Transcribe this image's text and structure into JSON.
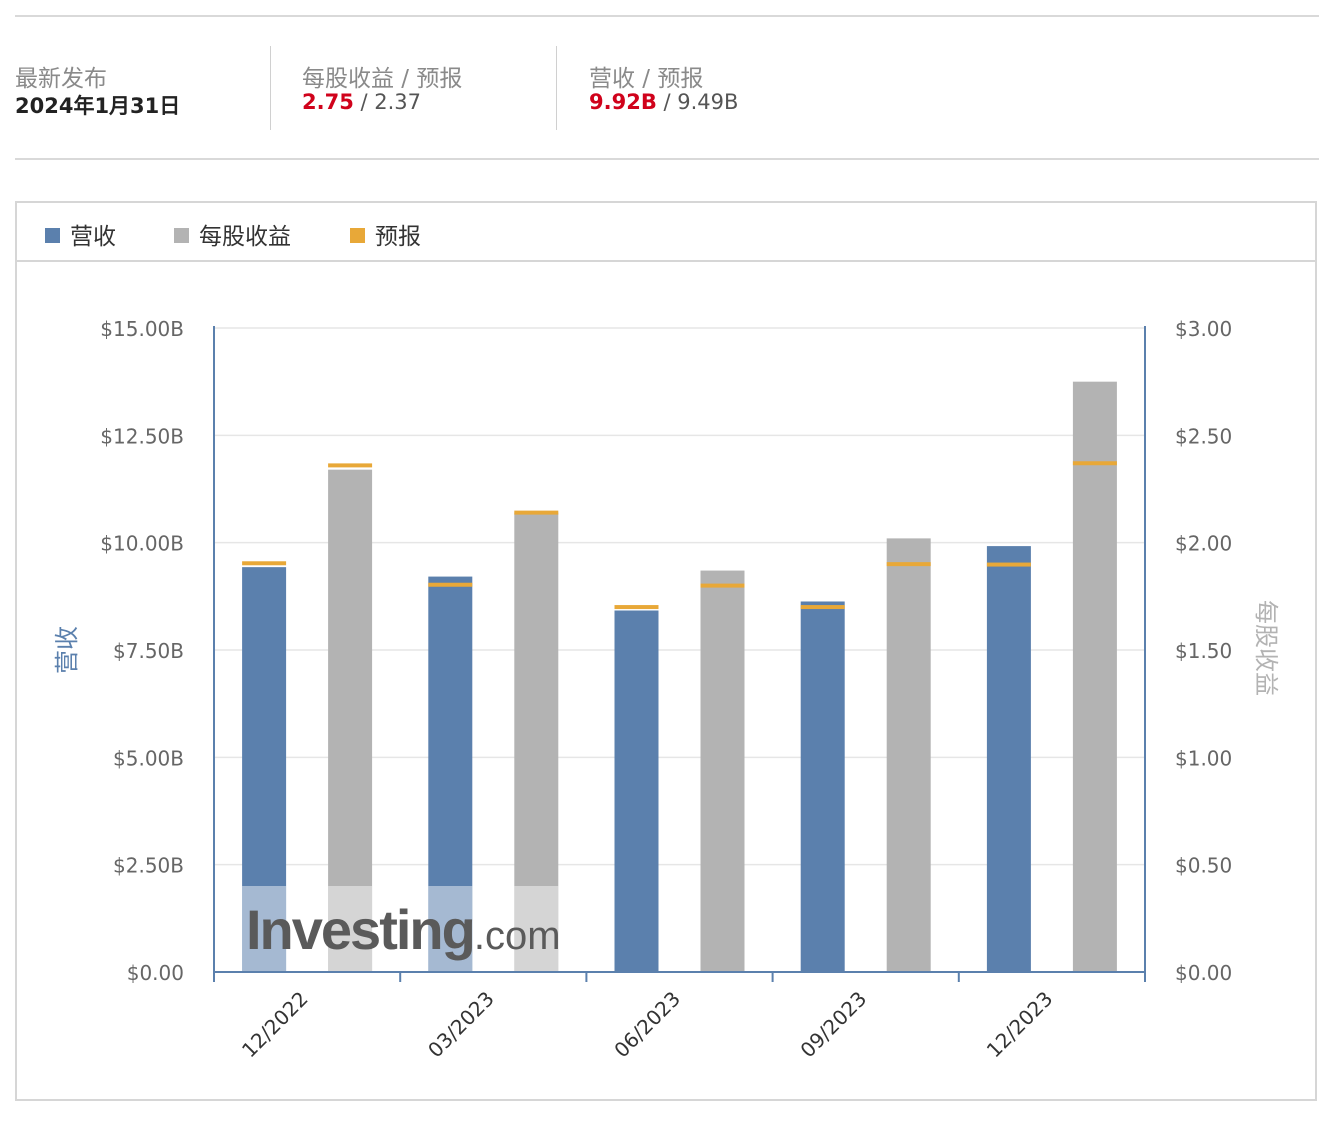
{
  "summary": {
    "latest": {
      "label": "最新发布",
      "value": "2024年1月31日"
    },
    "eps": {
      "label": "每股收益 / 预报",
      "actual": "2.75",
      "sep": " / ",
      "forecast": "2.37"
    },
    "revenue": {
      "label": "营收 / 预报",
      "actual": "9.92B",
      "sep": " / ",
      "forecast": "9.49B"
    }
  },
  "legend": [
    {
      "label": "营收",
      "color": "#5b80ad"
    },
    {
      "label": "每股收益",
      "color": "#b3b3b3"
    },
    {
      "label": "预报",
      "color": "#e8a838"
    }
  ],
  "watermark": {
    "brand": "Investing",
    "suffix": ".com"
  },
  "chart_data": {
    "type": "bar",
    "categories": [
      "12/2022",
      "03/2023",
      "06/2023",
      "09/2023",
      "12/2023"
    ],
    "left_axis": {
      "label": "营收",
      "ticks": [
        "$0.00",
        "$2.50B",
        "$5.00B",
        "$7.50B",
        "$10.00B",
        "$12.50B",
        "$15.00B"
      ],
      "ylim": [
        0,
        15
      ]
    },
    "right_axis": {
      "label": "每股收益",
      "ticks": [
        "$0.00",
        "$0.50",
        "$1.00",
        "$1.50",
        "$2.00",
        "$2.50",
        "$3.00"
      ],
      "ylim": [
        0,
        3
      ]
    },
    "series": [
      {
        "name": "营收",
        "axis": "left",
        "color": "#5b80ad",
        "values": [
          9.43,
          9.21,
          8.42,
          8.63,
          9.92
        ]
      },
      {
        "name": "每股收益",
        "axis": "right",
        "color": "#b3b3b3",
        "values": [
          2.34,
          2.14,
          1.87,
          2.02,
          2.75
        ]
      }
    ],
    "forecasts": [
      {
        "name": "预报",
        "axis": "left",
        "color": "#e8a838",
        "values": [
          9.52,
          9.02,
          8.5,
          8.5,
          9.49
        ]
      },
      {
        "name": "预报",
        "axis": "right",
        "color": "#e8a838",
        "values": [
          2.36,
          2.14,
          1.8,
          1.9,
          2.37
        ]
      }
    ],
    "grid": true
  }
}
